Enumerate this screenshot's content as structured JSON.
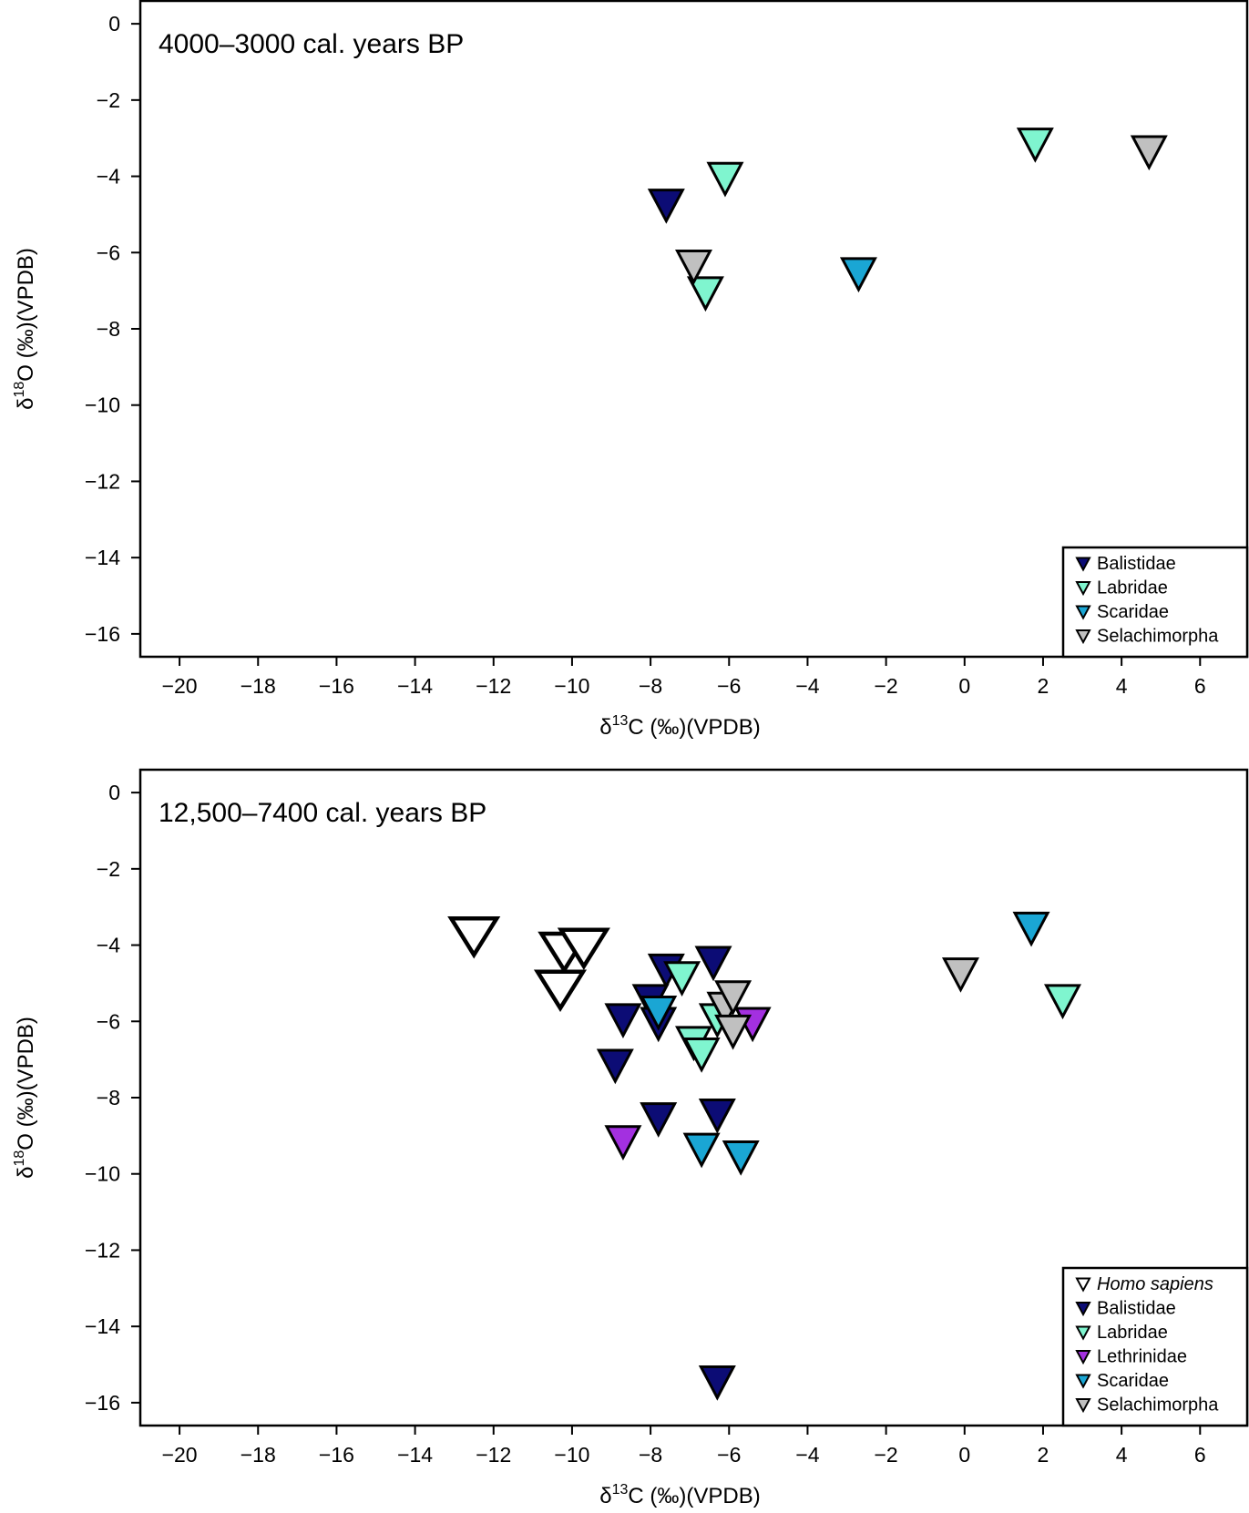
{
  "chart_data": [
    {
      "type": "scatter",
      "title": "4000–3000 cal. years BP",
      "xlabel_main": "δ",
      "xlabel_sup": "13",
      "xlabel_rest": "C (‰)(VPDB)",
      "ylabel_main": "δ",
      "ylabel_sup": "18",
      "ylabel_rest": "O (‰)(VPDB)",
      "xlim": [
        -21,
        7.2
      ],
      "ylim": [
        -16.6,
        0.6
      ],
      "xticks": [
        -20,
        -18,
        -16,
        -14,
        -12,
        -10,
        -8,
        -6,
        -4,
        -2,
        0,
        2,
        4,
        6
      ],
      "yticks": [
        0,
        -2,
        -4,
        -6,
        -8,
        -10,
        -12,
        -14,
        -16
      ],
      "xtick_labels": [
        "−20",
        "−18",
        "−16",
        "−14",
        "−12",
        "−10",
        "−8",
        "−6",
        "−4",
        "−2",
        "0",
        "2",
        "4",
        "6"
      ],
      "ytick_labels": [
        "0",
        "−2",
        "−4",
        "−6",
        "−8",
        "−10",
        "−12",
        "−14",
        "−16"
      ],
      "legend_position": "bottom-right",
      "series": [
        {
          "name": "Balistidae",
          "color": "#0c0c75",
          "points": [
            [
              -7.6,
              -4.7
            ]
          ]
        },
        {
          "name": "Labridae",
          "color": "#7ff5cf",
          "points": [
            [
              -6.1,
              -4.0
            ],
            [
              -6.6,
              -7.0
            ],
            [
              1.8,
              -3.1
            ]
          ]
        },
        {
          "name": "Scaridae",
          "color": "#1aa6d4",
          "points": [
            [
              -2.7,
              -6.5
            ]
          ]
        },
        {
          "name": "Selachimorpha",
          "color": "#c0c0c0",
          "points": [
            [
              -6.9,
              -6.3
            ],
            [
              4.7,
              -3.3
            ]
          ]
        }
      ]
    },
    {
      "type": "scatter",
      "title": "12,500–7400 cal. years BP",
      "xlabel_main": "δ",
      "xlabel_sup": "13",
      "xlabel_rest": "C (‰)(VPDB)",
      "ylabel_main": "δ",
      "ylabel_sup": "18",
      "ylabel_rest": "O (‰)(VPDB)",
      "xlim": [
        -21,
        7.2
      ],
      "ylim": [
        -16.6,
        0.6
      ],
      "xticks": [
        -20,
        -18,
        -16,
        -14,
        -12,
        -10,
        -8,
        -6,
        -4,
        -2,
        0,
        2,
        4,
        6
      ],
      "yticks": [
        0,
        -2,
        -4,
        -6,
        -8,
        -10,
        -12,
        -14,
        -16
      ],
      "xtick_labels": [
        "−20",
        "−18",
        "−16",
        "−14",
        "−12",
        "−10",
        "−8",
        "−6",
        "−4",
        "−2",
        "0",
        "2",
        "4",
        "6"
      ],
      "ytick_labels": [
        "0",
        "−2",
        "−4",
        "−6",
        "−8",
        "−10",
        "−12",
        "−14",
        "−16"
      ],
      "legend_position": "bottom-right",
      "series": [
        {
          "name": "Homo sapiens",
          "italic": true,
          "color": "#ffffff",
          "large": true,
          "points": [
            [
              -12.5,
              -3.7
            ],
            [
              -10.2,
              -4.1
            ],
            [
              -9.7,
              -4.0
            ],
            [
              -10.3,
              -5.1
            ]
          ]
        },
        {
          "name": "Balistidae",
          "color": "#0c0c75",
          "points": [
            [
              -7.6,
              -4.6
            ],
            [
              -6.4,
              -4.4
            ],
            [
              -8.0,
              -5.4
            ],
            [
              -8.7,
              -5.9
            ],
            [
              -7.8,
              -6.0
            ],
            [
              -8.9,
              -7.1
            ],
            [
              -7.8,
              -8.5
            ],
            [
              -6.3,
              -8.4
            ],
            [
              -6.3,
              -15.4
            ]
          ]
        },
        {
          "name": "Labridae",
          "color": "#7ff5cf",
          "points": [
            [
              -7.2,
              -4.8
            ],
            [
              -6.3,
              -5.9
            ],
            [
              -6.9,
              -6.5
            ],
            [
              -6.7,
              -6.8
            ],
            [
              2.5,
              -5.4
            ]
          ]
        },
        {
          "name": "Lethrinidae",
          "color": "#a330e0",
          "points": [
            [
              -5.4,
              -6.0
            ],
            [
              -8.7,
              -9.1
            ]
          ]
        },
        {
          "name": "Scaridae",
          "color": "#1aa6d4",
          "points": [
            [
              -7.8,
              -5.7
            ],
            [
              -6.7,
              -9.3
            ],
            [
              -5.7,
              -9.5
            ],
            [
              1.7,
              -3.5
            ]
          ]
        },
        {
          "name": "Selachimorpha",
          "color": "#c0c0c0",
          "points": [
            [
              -6.1,
              -5.6
            ],
            [
              -5.9,
              -6.2
            ],
            [
              -5.9,
              -5.3
            ],
            [
              -0.1,
              -4.7
            ]
          ]
        }
      ]
    }
  ]
}
